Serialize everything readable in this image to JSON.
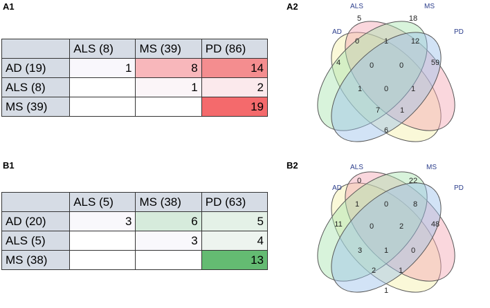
{
  "panels": {
    "A1": {
      "label": "A1",
      "columns": [
        "ALS (8)",
        "MS (39)",
        "PD (86)"
      ],
      "rows": [
        {
          "name": "AD (19)",
          "cells": [
            "1",
            "8",
            "14"
          ]
        },
        {
          "name": "ALS (8)",
          "cells": [
            "",
            "1",
            "2"
          ]
        },
        {
          "name": "MS (39)",
          "cells": [
            "",
            "",
            "19"
          ]
        }
      ],
      "colors": [
        [
          "#f9f7fc",
          "#f8b7bb",
          "#f48d8f"
        ],
        [
          "#ffffff",
          "#fbf5f8",
          "#fbe9ec"
        ],
        [
          "#ffffff",
          "#ffffff",
          "#f46a6c"
        ]
      ]
    },
    "B1": {
      "label": "B1",
      "columns": [
        "ALS (5)",
        "MS (38)",
        "PD (63)"
      ],
      "rows": [
        {
          "name": "AD (20)",
          "cells": [
            "3",
            "6",
            "5"
          ]
        },
        {
          "name": "ALS (5)",
          "cells": [
            "",
            "3",
            "4"
          ]
        },
        {
          "name": "MS (38)",
          "cells": [
            "",
            "",
            "13"
          ]
        }
      ],
      "colors": [
        [
          "#f9f8fc",
          "#d6ebdc",
          "#e4f1e7"
        ],
        [
          "#ffffff",
          "#f9f8fc",
          "#edf4ef"
        ],
        [
          "#ffffff",
          "#ffffff",
          "#64bb72"
        ]
      ]
    },
    "A2": {
      "label": "A2",
      "set_labels": {
        "AD": "AD",
        "ALS": "ALS",
        "MS": "MS",
        "PD": "PD"
      },
      "counts": {
        "AD": "4",
        "ALS": "5",
        "MS": "18",
        "PD": "59",
        "AD_ALS": "0",
        "ALS_MS": "1",
        "MS_PD": "12",
        "AD_ALS_MS": "0",
        "ALS_MS_PD": "0",
        "AD_MS": "1",
        "ALS_PD": "1",
        "all": "0",
        "AD_MS_PD": "7",
        "AD_ALS_PD": "1",
        "AD_PD": "6"
      }
    },
    "B2": {
      "label": "B2",
      "set_labels": {
        "AD": "AD",
        "ALS": "ALS",
        "MS": "MS",
        "PD": "PD"
      },
      "counts": {
        "AD": "11",
        "ALS": "0",
        "MS": "22",
        "PD": "48",
        "AD_ALS": "1",
        "ALS_MS": "0",
        "MS_PD": "8",
        "AD_ALS_MS": "0",
        "ALS_MS_PD": "2",
        "AD_MS": "3",
        "ALS_PD": "0",
        "all": "1",
        "AD_MS_PD": "2",
        "AD_ALS_PD": "1",
        "AD_PD": "1"
      }
    }
  },
  "venn_colors": {
    "AD": "#f5f0a8",
    "ALS": "#f4a6b4",
    "MS": "#a8e4b0",
    "PD": "#9cc0ec",
    "label": "#2c3e8c"
  }
}
